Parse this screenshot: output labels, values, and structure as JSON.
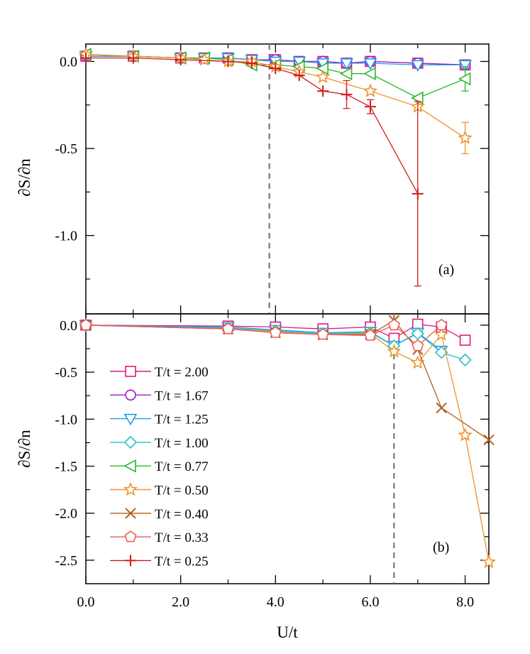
{
  "chart_data": [
    {
      "panel": "(a)",
      "type": "line",
      "xlabel": "U/t",
      "ylabel": "∂S/∂n",
      "xlim": [
        0,
        8.5
      ],
      "ylim": [
        -1.45,
        0.1
      ],
      "yticks": [
        0.0,
        -0.5,
        -1.0
      ],
      "ytick_labels": [
        "0.0",
        "-0.5",
        "-1.0"
      ],
      "vline_x": 3.87,
      "tag": "(a)",
      "series": [
        {
          "name": "T/t = 2.00",
          "color": "#e0197d",
          "marker": "square",
          "points": [
            [
              0,
              0.03
            ],
            [
              1,
              0.03
            ],
            [
              2,
              0.02
            ],
            [
              2.5,
              0.02
            ],
            [
              3,
              0.02
            ],
            [
              3.5,
              0.01
            ],
            [
              4,
              0.01
            ],
            [
              4.5,
              0.0
            ],
            [
              5,
              0.0
            ],
            [
              5.5,
              -0.01
            ],
            [
              6,
              0.0
            ],
            [
              7,
              -0.01
            ],
            [
              8,
              -0.02
            ]
          ]
        },
        {
          "name": "T/t = 1.67",
          "color": "#9a1fc7",
          "marker": "circle",
          "points": [
            [
              0,
              0.03
            ],
            [
              1,
              0.03
            ],
            [
              2,
              0.02
            ],
            [
              2.5,
              0.02
            ],
            [
              3,
              0.02
            ],
            [
              3.5,
              0.01
            ],
            [
              4,
              0.01
            ],
            [
              4.5,
              0.0
            ],
            [
              5,
              0.0
            ],
            [
              5.5,
              -0.01
            ],
            [
              6,
              0.0
            ],
            [
              7,
              -0.01
            ],
            [
              8,
              -0.02
            ]
          ]
        },
        {
          "name": "T/t = 1.25",
          "color": "#1f9be8",
          "marker": "triangle-down",
          "points": [
            [
              0,
              0.03
            ],
            [
              1,
              0.03
            ],
            [
              2,
              0.02
            ],
            [
              2.5,
              0.02
            ],
            [
              3,
              0.02
            ],
            [
              3.5,
              0.01
            ],
            [
              4,
              0.0
            ],
            [
              4.5,
              0.0
            ],
            [
              5,
              -0.01
            ],
            [
              5.5,
              -0.01
            ],
            [
              6,
              -0.01
            ],
            [
              7,
              -0.02
            ],
            [
              8,
              -0.02
            ]
          ]
        },
        {
          "name": "T/t = 0.77",
          "color": "#28b828",
          "marker": "triangle-left",
          "points": [
            [
              0,
              0.04
            ],
            [
              1,
              0.03
            ],
            [
              2,
              0.02
            ],
            [
              2.5,
              0.02
            ],
            [
              3,
              0.01
            ],
            [
              3.5,
              -0.02
            ],
            [
              4,
              -0.02
            ],
            [
              4.5,
              -0.03
            ],
            [
              5,
              -0.04
            ],
            [
              5.5,
              -0.07
            ],
            [
              6,
              -0.07
            ],
            [
              7,
              -0.21
            ],
            [
              8,
              -0.1
            ]
          ],
          "errors": [
            [
              8,
              0.07
            ]
          ]
        },
        {
          "name": "T/t = 0.50",
          "color": "#f0932b",
          "marker": "star",
          "points": [
            [
              0,
              0.04
            ],
            [
              1,
              0.03
            ],
            [
              2,
              0.02
            ],
            [
              2.5,
              0.01
            ],
            [
              3,
              0.0
            ],
            [
              3.5,
              0.0
            ],
            [
              4,
              -0.03
            ],
            [
              4.5,
              -0.06
            ],
            [
              5,
              -0.09
            ],
            [
              6,
              -0.17
            ],
            [
              7,
              -0.26
            ],
            [
              8,
              -0.44
            ]
          ],
          "errors": [
            [
              8,
              0.09
            ]
          ]
        },
        {
          "name": "T/t = 0.25",
          "color": "#d01c1c",
          "marker": "plus",
          "points": [
            [
              0,
              0.02
            ],
            [
              1,
              0.02
            ],
            [
              2,
              0.01
            ],
            [
              3,
              0.0
            ],
            [
              3.5,
              -0.01
            ],
            [
              4,
              -0.04
            ],
            [
              4.5,
              -0.08
            ],
            [
              5,
              -0.17
            ],
            [
              5.5,
              -0.19
            ],
            [
              6,
              -0.26
            ],
            [
              7,
              -0.76
            ]
          ],
          "errors": [
            [
              5.5,
              0.08
            ],
            [
              6,
              0.04
            ],
            [
              7,
              0.53
            ]
          ]
        }
      ]
    },
    {
      "panel": "(b)",
      "type": "line",
      "xlabel": "U/t",
      "ylabel": "∂S/∂n",
      "xlim": [
        0,
        8.5
      ],
      "ylim": [
        -2.75,
        0.12
      ],
      "xticks": [
        0.0,
        2.0,
        4.0,
        6.0,
        8.0
      ],
      "xtick_labels": [
        "0.0",
        "2.0",
        "4.0",
        "6.0",
        "8.0"
      ],
      "yticks": [
        0.0,
        -0.5,
        -1.0,
        -1.5,
        -2.0,
        -2.5
      ],
      "ytick_labels": [
        "0.0",
        "-0.5",
        "-1.0",
        "-1.5",
        "-2.0",
        "-2.5"
      ],
      "vline_x": 6.5,
      "tag": "(b)",
      "series": [
        {
          "name": "T/t = 2.00",
          "color": "#e0197d",
          "marker": "square",
          "points": [
            [
              0,
              0.0
            ],
            [
              3,
              -0.01
            ],
            [
              4,
              -0.02
            ],
            [
              5,
              -0.04
            ],
            [
              6,
              -0.02
            ],
            [
              6.5,
              -0.14
            ],
            [
              7,
              0.01
            ],
            [
              7.5,
              -0.02
            ],
            [
              8,
              -0.16
            ]
          ]
        },
        {
          "name": "T/t = 1.67",
          "color": "#9a1fc7",
          "marker": "circle",
          "points": []
        },
        {
          "name": "T/t = 1.25",
          "color": "#1f9be8",
          "marker": "triangle-down",
          "points": [
            [
              0,
              0.0
            ],
            [
              3,
              -0.02
            ],
            [
              4,
              -0.05
            ],
            [
              5,
              -0.08
            ],
            [
              6,
              -0.07
            ],
            [
              6.5,
              -0.22
            ],
            [
              7,
              -0.08
            ],
            [
              7.5,
              -0.27
            ]
          ]
        },
        {
          "name": "T/t = 1.00",
          "color": "#26c0c0",
          "marker": "diamond",
          "points": [
            [
              0,
              0.0
            ],
            [
              3,
              -0.03
            ],
            [
              4,
              -0.06
            ],
            [
              5,
              -0.09
            ],
            [
              6,
              -0.08
            ],
            [
              6.5,
              -0.22
            ],
            [
              7,
              -0.09
            ],
            [
              7.5,
              -0.29
            ],
            [
              8,
              -0.37
            ]
          ]
        },
        {
          "name": "T/t = 0.77",
          "color": "#28b828",
          "marker": "triangle-left",
          "points": []
        },
        {
          "name": "T/t = 0.50",
          "color": "#f0932b",
          "marker": "star",
          "points": [
            [
              0,
              0.0
            ],
            [
              3,
              -0.04
            ],
            [
              4,
              -0.07
            ],
            [
              5,
              -0.1
            ],
            [
              6,
              -0.09
            ],
            [
              6.5,
              -0.28
            ],
            [
              7,
              -0.4
            ],
            [
              7.5,
              -0.1
            ],
            [
              8,
              -1.17
            ],
            [
              8.5,
              -2.52
            ]
          ]
        },
        {
          "name": "T/t = 0.40",
          "color": "#b0601a",
          "marker": "x",
          "points": [
            [
              0,
              0.0
            ],
            [
              3,
              -0.04
            ],
            [
              4,
              -0.08
            ],
            [
              5,
              -0.1
            ],
            [
              6,
              -0.1
            ],
            [
              6.5,
              0.05
            ],
            [
              7,
              -0.26
            ],
            [
              7.5,
              -0.88
            ],
            [
              8.5,
              -1.22
            ]
          ]
        },
        {
          "name": "T/t = 0.33",
          "color": "#f05a5a",
          "marker": "pentagon",
          "points": [
            [
              0,
              0.0
            ],
            [
              3,
              -0.04
            ],
            [
              4,
              -0.08
            ],
            [
              5,
              -0.1
            ],
            [
              6,
              -0.11
            ],
            [
              6.5,
              0.0
            ],
            [
              7,
              -0.22
            ],
            [
              7.5,
              0.0
            ]
          ]
        },
        {
          "name": "T/t = 0.25",
          "color": "#d01c1c",
          "marker": "plus",
          "points": []
        }
      ]
    }
  ],
  "legend": [
    {
      "label": "T/t = 2.00",
      "color": "#e0197d",
      "marker": "square"
    },
    {
      "label": "T/t = 1.67",
      "color": "#9a1fc7",
      "marker": "circle"
    },
    {
      "label": "T/t = 1.25",
      "color": "#1f9be8",
      "marker": "triangle-down"
    },
    {
      "label": "T/t = 1.00",
      "color": "#26c0c0",
      "marker": "diamond"
    },
    {
      "label": "T/t = 0.77",
      "color": "#28b828",
      "marker": "triangle-left"
    },
    {
      "label": "T/t = 0.50",
      "color": "#f0932b",
      "marker": "star"
    },
    {
      "label": "T/t = 0.40",
      "color": "#b0601a",
      "marker": "x"
    },
    {
      "label": "T/t = 0.33",
      "color": "#f05a5a",
      "marker": "pentagon"
    },
    {
      "label": "T/t = 0.25",
      "color": "#d01c1c",
      "marker": "plus"
    }
  ],
  "legend_placement": "bottom-left of panel (b)"
}
